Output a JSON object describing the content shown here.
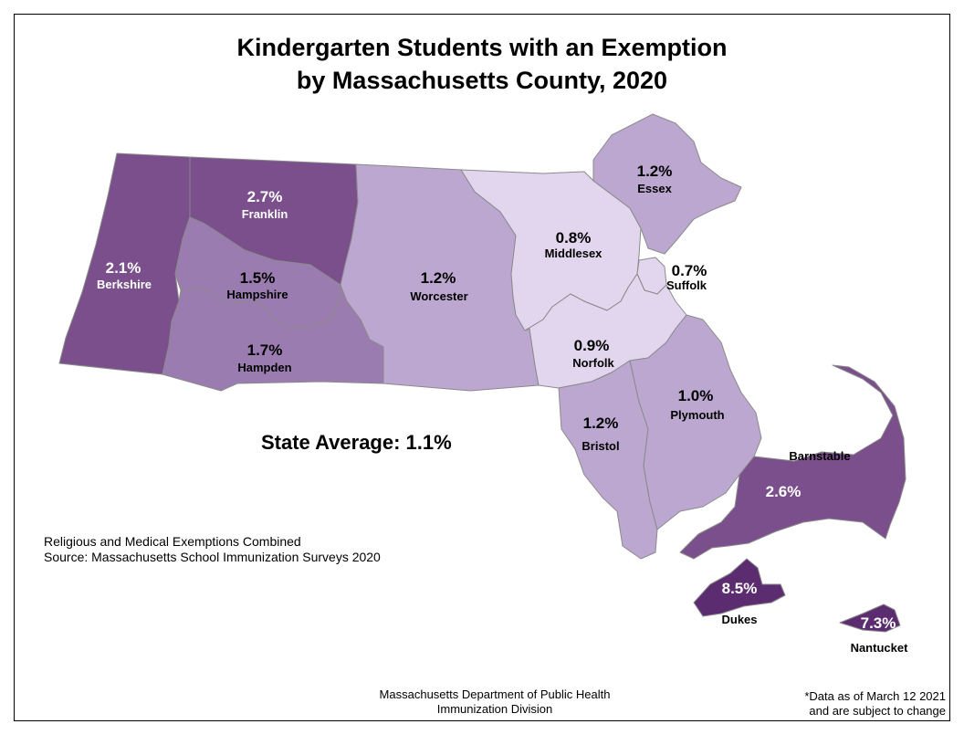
{
  "title_line1": "Kindergarten Students with an Exemption",
  "title_line2": "by Massachusetts County, 2020",
  "state_average": "State Average: 1.1%",
  "notes": {
    "line1": "Religious and Medical Exemptions Combined",
    "line2": "Source: Massachusetts School Immunization Surveys 2020"
  },
  "credit": {
    "line1": "Massachusetts Department of Public Health",
    "line2": "Immunization Division"
  },
  "disclaimer": {
    "line1": "*Data as of March 12 2021",
    "line2": "and are subject to change"
  },
  "colors": {
    "darkest": "#5b2c6f",
    "dark": "#7a4f8c",
    "medium": "#9b7cb1",
    "light": "#bca7d0",
    "lightest": "#e2d6ee"
  },
  "counties": [
    {
      "key": "berkshire",
      "name": "Berkshire",
      "pct": "2.1%",
      "value": 2.1,
      "color": "#7a4f8c"
    },
    {
      "key": "franklin",
      "name": "Franklin",
      "pct": "2.7%",
      "value": 2.7,
      "color": "#7a4f8c"
    },
    {
      "key": "hampshire",
      "name": "Hampshire",
      "pct": "1.5%",
      "value": 1.5,
      "color": "#9b7cb1"
    },
    {
      "key": "hampden",
      "name": "Hampden",
      "pct": "1.7%",
      "value": 1.7,
      "color": "#9b7cb1"
    },
    {
      "key": "worcester",
      "name": "Worcester",
      "pct": "1.2%",
      "value": 1.2,
      "color": "#bca7d0"
    },
    {
      "key": "middlesex",
      "name": "Middlesex",
      "pct": "0.8%",
      "value": 0.8,
      "color": "#e2d6ee"
    },
    {
      "key": "essex",
      "name": "Essex",
      "pct": "1.2%",
      "value": 1.2,
      "color": "#bca7d0"
    },
    {
      "key": "suffolk",
      "name": "Suffolk",
      "pct": "0.7%",
      "value": 0.7,
      "color": "#e2d6ee"
    },
    {
      "key": "norfolk",
      "name": "Norfolk",
      "pct": "0.9%",
      "value": 0.9,
      "color": "#e2d6ee"
    },
    {
      "key": "bristol",
      "name": "Bristol",
      "pct": "1.2%",
      "value": 1.2,
      "color": "#bca7d0"
    },
    {
      "key": "plymouth",
      "name": "Plymouth",
      "pct": "1.0%",
      "value": 1.0,
      "color": "#bca7d0"
    },
    {
      "key": "barnstable",
      "name": "Barnstable",
      "pct": "2.6%",
      "value": 2.6,
      "color": "#7a4f8c"
    },
    {
      "key": "dukes",
      "name": "Dukes",
      "pct": "8.5%",
      "value": 8.5,
      "color": "#5b2c6f"
    },
    {
      "key": "nantucket",
      "name": "Nantucket",
      "pct": "7.3%",
      "value": 7.3,
      "color": "#5b2c6f"
    }
  ]
}
